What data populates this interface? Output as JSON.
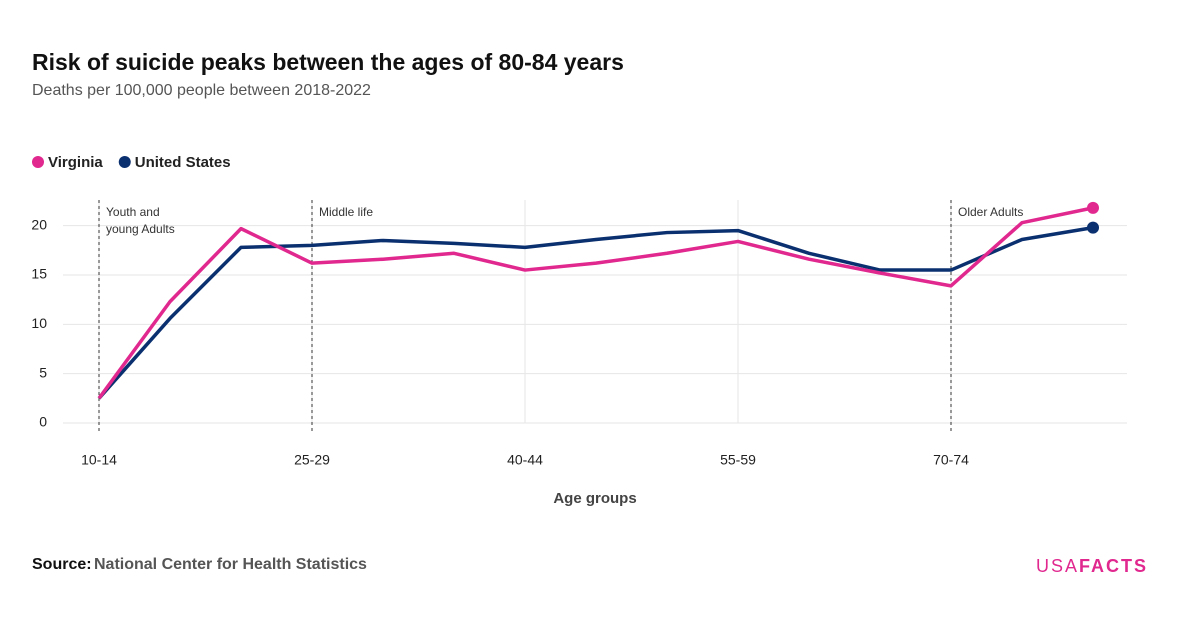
{
  "chart_data": {
    "type": "line",
    "title": "Risk of suicide peaks between the ages of 80-84 years",
    "subtitle": "Deaths per 100,000 people between 2018-2022",
    "x_label": "Age groups",
    "categories": [
      "10-14",
      null,
      null,
      "25-29",
      null,
      null,
      "40-44",
      null,
      null,
      "55-59",
      null,
      null,
      "70-74",
      null,
      null
    ],
    "series": [
      {
        "name": "Virginia",
        "color": "#e0288f",
        "values": [
          2.5,
          12.3,
          19.7,
          16.2,
          16.6,
          17.2,
          15.5,
          16.2,
          17.2,
          18.4,
          16.6,
          15.2,
          13.9,
          20.3,
          21.8
        ]
      },
      {
        "name": "United States",
        "color": "#0b3070",
        "values": [
          2.5,
          10.6,
          17.8,
          18.0,
          18.5,
          18.2,
          17.8,
          18.6,
          19.3,
          19.5,
          17.2,
          15.5,
          15.5,
          18.6,
          19.8
        ]
      }
    ],
    "ylim": [
      0,
      22.6
    ],
    "yticks": [
      0,
      5,
      10,
      15,
      20
    ],
    "grid": true,
    "annotations": [
      {
        "x": "10-14",
        "text": "Youth and young Adults"
      },
      {
        "x": "25-29",
        "text": "Middle life"
      },
      {
        "x": "70-74",
        "text": "Older Adults"
      }
    ],
    "source_label": "Source:",
    "source": "National Center for Health Statistics",
    "logo": [
      "USA",
      "FACTS"
    ]
  }
}
